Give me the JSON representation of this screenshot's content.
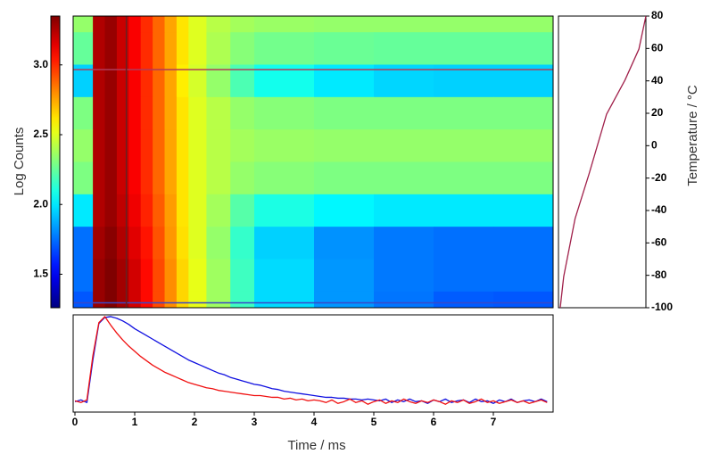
{
  "chart_data": [
    {
      "type": "heatmap",
      "zlabel": "Log Counts",
      "colormap": "jet",
      "x_edges": [
        -0.03,
        0.3,
        0.5,
        0.7,
        0.9,
        1.1,
        1.3,
        1.5,
        1.7,
        1.9,
        2.2,
        2.6,
        3.0,
        4.0,
        5.0,
        6.0,
        7.0,
        8.0
      ],
      "y": [
        80,
        60,
        40,
        20,
        0,
        -20,
        -40,
        -60,
        -80,
        -100
      ],
      "z": [
        [
          2.35,
          3.25,
          3.3,
          3.2,
          3.1,
          3.0,
          2.88,
          2.75,
          2.62,
          2.5,
          2.42,
          2.38,
          2.36,
          2.35,
          2.35,
          2.35,
          2.35
        ],
        [
          2.25,
          3.25,
          3.3,
          3.2,
          3.1,
          3.0,
          2.88,
          2.75,
          2.62,
          2.5,
          2.4,
          2.32,
          2.28,
          2.26,
          2.25,
          2.25,
          2.25
        ],
        [
          1.95,
          3.25,
          3.3,
          3.2,
          3.1,
          3.0,
          2.88,
          2.75,
          2.6,
          2.48,
          2.35,
          2.2,
          2.08,
          2.0,
          1.96,
          1.95,
          1.95
        ],
        [
          2.3,
          3.25,
          3.3,
          3.2,
          3.1,
          3.0,
          2.88,
          2.75,
          2.62,
          2.5,
          2.42,
          2.35,
          2.32,
          2.3,
          2.3,
          2.3,
          2.3
        ],
        [
          2.35,
          3.25,
          3.3,
          3.2,
          3.1,
          3.0,
          2.88,
          2.75,
          2.62,
          2.5,
          2.42,
          2.38,
          2.36,
          2.35,
          2.35,
          2.35,
          2.35
        ],
        [
          2.3,
          3.25,
          3.3,
          3.2,
          3.1,
          3.0,
          2.88,
          2.75,
          2.62,
          2.5,
          2.42,
          2.35,
          2.32,
          2.3,
          2.3,
          2.3,
          2.3
        ],
        [
          2.0,
          3.25,
          3.3,
          3.22,
          3.12,
          3.02,
          2.9,
          2.77,
          2.62,
          2.5,
          2.38,
          2.22,
          2.1,
          2.03,
          2.0,
          2.0,
          2.0
        ],
        [
          1.75,
          3.28,
          3.33,
          3.25,
          3.15,
          3.05,
          2.92,
          2.78,
          2.63,
          2.5,
          2.35,
          2.15,
          1.95,
          1.82,
          1.77,
          1.75,
          1.75
        ],
        [
          1.75,
          3.3,
          3.35,
          3.28,
          3.18,
          3.07,
          2.94,
          2.8,
          2.65,
          2.52,
          2.37,
          2.17,
          1.97,
          1.83,
          1.77,
          1.75,
          1.75
        ],
        [
          1.7,
          3.3,
          3.35,
          3.28,
          3.18,
          3.07,
          2.94,
          2.8,
          2.65,
          2.52,
          2.37,
          2.17,
          1.97,
          1.83,
          1.76,
          1.71,
          1.7
        ]
      ],
      "xlim": [
        -0.03,
        8.0
      ],
      "ylim": [
        -100,
        80
      ],
      "zlim": [
        1.26,
        3.35
      ],
      "zticks": [
        {
          "value": 3,
          "label": "3.0"
        },
        2.5,
        {
          "value": 2,
          "label": "2.0"
        },
        1.5
      ],
      "cursors": [
        {
          "axis": "y",
          "value": 47,
          "color": "#b03a5a"
        },
        {
          "axis": "y",
          "value": -97,
          "color": "#3a48c8"
        },
        {
          "axis": "x",
          "value": 0.86,
          "color": "#6a2020"
        }
      ]
    },
    {
      "type": "line",
      "ylabel": "Temperature / °C",
      "y_axis_position": "right",
      "x": [
        0.02,
        0.06,
        0.1,
        0.19,
        0.35,
        0.55,
        0.76,
        0.92,
        1.0
      ],
      "values": [
        -100,
        -80.7,
        -69.7,
        -45,
        -17.4,
        19.4,
        40.4,
        59.6,
        80
      ],
      "color": "#a0204a",
      "xlim": [
        0,
        1
      ],
      "ylim": [
        -100,
        80
      ],
      "yticks": [
        -100,
        -80,
        -60,
        -40,
        -20,
        0,
        20,
        40,
        60,
        80
      ]
    },
    {
      "type": "line",
      "xlabel": "Time / ms",
      "x": [
        0,
        0.1,
        0.2,
        0.3,
        0.4,
        0.5,
        0.6,
        0.7,
        0.8,
        0.9,
        1,
        1.1,
        1.2,
        1.3,
        1.4,
        1.5,
        1.6,
        1.7,
        1.8,
        1.9,
        2,
        2.1,
        2.2,
        2.3,
        2.4,
        2.5,
        2.6,
        2.7,
        2.8,
        2.9,
        3,
        3.1,
        3.2,
        3.3,
        3.4,
        3.5,
        3.6,
        3.7,
        3.8,
        3.9,
        4,
        4.1,
        4.2,
        4.3,
        4.4,
        4.5,
        4.6,
        4.7,
        4.8,
        4.9,
        5,
        5.1,
        5.2,
        5.3,
        5.4,
        5.5,
        5.6,
        5.7,
        5.8,
        5.9,
        6,
        6.1,
        6.2,
        6.3,
        6.4,
        6.5,
        6.6,
        6.7,
        6.8,
        6.9,
        7,
        7.1,
        7.2,
        7.3,
        7.4,
        7.5,
        7.6,
        7.7,
        7.8,
        7.9
      ],
      "series": [
        {
          "color": "#1010e0",
          "values": [
            0.02,
            0.04,
            0.01,
            0.5,
            0.92,
            0.99,
            1.0,
            0.98,
            0.95,
            0.91,
            0.86,
            0.82,
            0.78,
            0.74,
            0.7,
            0.66,
            0.62,
            0.58,
            0.54,
            0.5,
            0.47,
            0.44,
            0.41,
            0.38,
            0.35,
            0.33,
            0.3,
            0.28,
            0.26,
            0.24,
            0.22,
            0.21,
            0.19,
            0.17,
            0.16,
            0.14,
            0.13,
            0.12,
            0.11,
            0.1,
            0.09,
            0.08,
            0.07,
            0.07,
            0.06,
            0.06,
            0.05,
            0.05,
            0.04,
            0.05,
            0.04,
            0.03,
            0.05,
            0.01,
            0.04,
            0.02,
            0.05,
            0.02,
            0.03,
            0.0,
            0.04,
            0.02,
            0.05,
            0.01,
            0.03,
            0.04,
            0.01,
            0.05,
            0.02,
            0.03,
            0.0,
            0.04,
            0.02,
            0.05,
            0.01,
            0.03,
            0.04,
            0.02,
            0.05,
            0.02
          ]
        },
        {
          "color": "#f01010",
          "values": [
            0.03,
            0.01,
            0.04,
            0.55,
            0.93,
            1.0,
            0.9,
            0.81,
            0.73,
            0.66,
            0.6,
            0.54,
            0.49,
            0.44,
            0.4,
            0.36,
            0.33,
            0.3,
            0.27,
            0.24,
            0.22,
            0.2,
            0.18,
            0.17,
            0.15,
            0.14,
            0.13,
            0.12,
            0.11,
            0.1,
            0.09,
            0.09,
            0.08,
            0.07,
            0.07,
            0.05,
            0.06,
            0.04,
            0.05,
            0.03,
            0.04,
            0.03,
            0.01,
            0.04,
            0.0,
            0.02,
            0.05,
            0.01,
            0.03,
            -0.01,
            0.02,
            0.04,
            0.0,
            0.03,
            0.01,
            0.05,
            0.02,
            0.0,
            0.03,
            0.01,
            0.04,
            0.02,
            -0.01,
            0.03,
            0.01,
            0.04,
            0.0,
            0.02,
            0.05,
            0.01,
            0.03,
            0.0,
            0.02,
            0.04,
            0.01,
            0.03,
            0.0,
            0.02,
            0.04,
            0.01
          ]
        }
      ],
      "xlim": [
        -0.03,
        8.0
      ],
      "ylim": [
        -0.1,
        1.02
      ],
      "xticks": [
        0,
        1,
        2,
        3,
        4,
        5,
        6,
        7
      ]
    }
  ]
}
